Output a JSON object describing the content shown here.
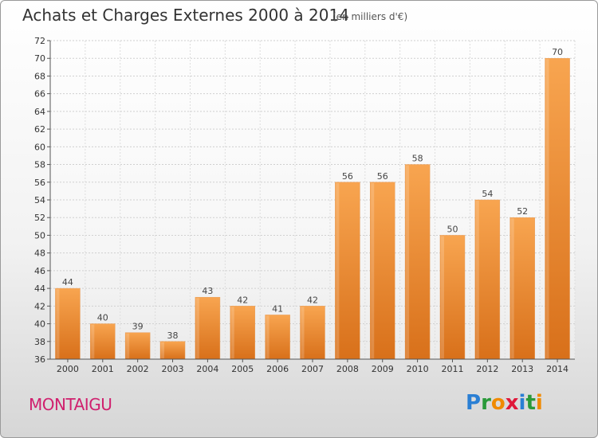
{
  "title": "Achats et Charges Externes 2000 à 2014",
  "subtitle": "(en milliers d'€)",
  "commune": "MONTAIGU",
  "logo": {
    "text": "Proxiti",
    "letters": [
      {
        "ch": "P",
        "color": "#2a7fd4"
      },
      {
        "ch": "r",
        "color": "#2a9a3a"
      },
      {
        "ch": "o",
        "color": "#f08a00"
      },
      {
        "ch": "x",
        "color": "#e0183a"
      },
      {
        "ch": "i",
        "color": "#2a7fd4"
      },
      {
        "ch": "t",
        "color": "#2a9a3a"
      },
      {
        "ch": "i",
        "color": "#f08a00"
      }
    ]
  },
  "chart_data": {
    "type": "bar",
    "categories": [
      "2000",
      "2001",
      "2002",
      "2003",
      "2004",
      "2005",
      "2006",
      "2007",
      "2008",
      "2009",
      "2010",
      "2011",
      "2012",
      "2013",
      "2014"
    ],
    "values": [
      44,
      40,
      39,
      38,
      43,
      42,
      41,
      42,
      56,
      56,
      58,
      50,
      54,
      52,
      70
    ],
    "ylim": [
      36,
      72
    ],
    "yticks": [
      36,
      38,
      40,
      42,
      44,
      46,
      48,
      50,
      52,
      54,
      56,
      58,
      60,
      62,
      64,
      66,
      68,
      70,
      72
    ],
    "grid": true,
    "bar_color": "#f0922e",
    "bar_color_light": "#f7b060",
    "bar_color_dark": "#d66a10"
  }
}
